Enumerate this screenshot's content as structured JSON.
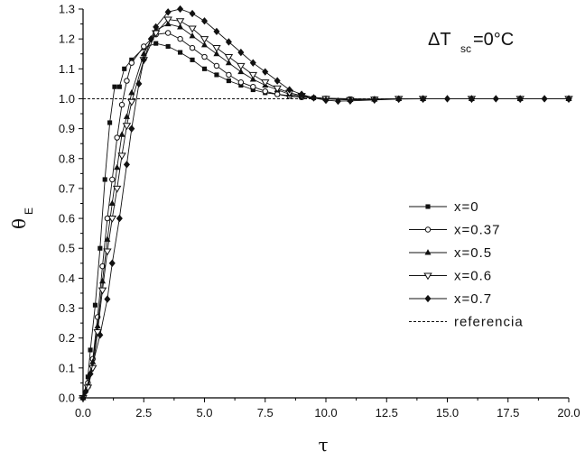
{
  "chart_data": {
    "type": "line",
    "xlabel": "τ",
    "ylabel": "θ",
    "ylabel_sub": "E",
    "xlim": [
      0,
      20
    ],
    "ylim": [
      0,
      1.3
    ],
    "x_ticks": [
      "0.0",
      "2.5",
      "5.0",
      "7.5",
      "10.0",
      "12.5",
      "15.0",
      "17.5",
      "20.0"
    ],
    "y_ticks": [
      "0.0",
      "0.1",
      "0.2",
      "0.3",
      "0.4",
      "0.5",
      "0.6",
      "0.7",
      "0.8",
      "0.9",
      "1.0",
      "1.1",
      "1.2",
      "1.3"
    ],
    "annotation": {
      "delta": "ΔT",
      "sub": "sc",
      "rest": "=0°C"
    },
    "legend_position": "right",
    "grid": false,
    "series": [
      {
        "name": "x=0",
        "marker": "square",
        "points": [
          [
            0,
            0
          ],
          [
            0.2,
            0.07
          ],
          [
            0.3,
            0.16
          ],
          [
            0.5,
            0.31
          ],
          [
            0.7,
            0.5
          ],
          [
            0.9,
            0.73
          ],
          [
            1.1,
            0.92
          ],
          [
            1.3,
            1.04
          ],
          [
            1.5,
            1.04
          ],
          [
            1.7,
            1.1
          ],
          [
            2.0,
            1.13
          ],
          [
            2.5,
            1.17
          ],
          [
            3.0,
            1.185
          ],
          [
            3.5,
            1.175
          ],
          [
            4.0,
            1.155
          ],
          [
            4.5,
            1.13
          ],
          [
            5.0,
            1.1
          ],
          [
            5.5,
            1.08
          ],
          [
            6.0,
            1.06
          ],
          [
            6.5,
            1.045
          ],
          [
            7.0,
            1.03
          ],
          [
            7.5,
            1.02
          ],
          [
            8.0,
            1.015
          ],
          [
            8.5,
            1.008
          ],
          [
            9.0,
            1.005
          ],
          [
            9.5,
            1.003
          ],
          [
            10,
            1.002
          ],
          [
            11,
            1.0
          ],
          [
            12,
            0.999
          ],
          [
            13,
            1.0
          ],
          [
            14,
            1.0
          ],
          [
            16,
            1.0
          ],
          [
            18,
            1.0
          ],
          [
            20,
            1.0
          ]
        ]
      },
      {
        "name": "x=0.37",
        "marker": "circle-open",
        "points": [
          [
            0,
            0
          ],
          [
            0.2,
            0.05
          ],
          [
            0.4,
            0.13
          ],
          [
            0.6,
            0.27
          ],
          [
            0.8,
            0.44
          ],
          [
            1.0,
            0.6
          ],
          [
            1.2,
            0.73
          ],
          [
            1.4,
            0.87
          ],
          [
            1.6,
            0.98
          ],
          [
            1.8,
            1.06
          ],
          [
            2.0,
            1.12
          ],
          [
            2.5,
            1.175
          ],
          [
            3.0,
            1.215
          ],
          [
            3.5,
            1.22
          ],
          [
            4.0,
            1.2
          ],
          [
            4.5,
            1.17
          ],
          [
            5.0,
            1.14
          ],
          [
            5.5,
            1.11
          ],
          [
            6.0,
            1.08
          ],
          [
            6.5,
            1.055
          ],
          [
            7.0,
            1.04
          ],
          [
            7.5,
            1.025
          ],
          [
            8.0,
            1.015
          ],
          [
            8.5,
            1.01
          ],
          [
            9.0,
            1.005
          ],
          [
            10,
            1.0
          ],
          [
            11,
            0.998
          ],
          [
            12,
            0.999
          ],
          [
            13,
            1.0
          ],
          [
            14,
            1.0
          ],
          [
            16,
            1.0
          ],
          [
            18,
            1.0
          ],
          [
            20,
            1.0
          ]
        ]
      },
      {
        "name": "x=0.5",
        "marker": "triangle-filled",
        "points": [
          [
            0,
            0
          ],
          [
            0.2,
            0.04
          ],
          [
            0.4,
            0.12
          ],
          [
            0.6,
            0.24
          ],
          [
            0.8,
            0.39
          ],
          [
            1.0,
            0.53
          ],
          [
            1.2,
            0.65
          ],
          [
            1.4,
            0.77
          ],
          [
            1.6,
            0.88
          ],
          [
            1.8,
            0.94
          ],
          [
            2.0,
            1.02
          ],
          [
            2.5,
            1.15
          ],
          [
            3.0,
            1.23
          ],
          [
            3.5,
            1.25
          ],
          [
            4.0,
            1.24
          ],
          [
            4.5,
            1.21
          ],
          [
            5.0,
            1.18
          ],
          [
            5.5,
            1.15
          ],
          [
            6.0,
            1.12
          ],
          [
            6.5,
            1.09
          ],
          [
            7.0,
            1.065
          ],
          [
            7.5,
            1.045
          ],
          [
            8.0,
            1.03
          ],
          [
            8.5,
            1.015
          ],
          [
            9.0,
            1.008
          ],
          [
            10,
            1.0
          ],
          [
            11,
            0.997
          ],
          [
            12,
            0.998
          ],
          [
            13,
            1.0
          ],
          [
            14,
            1.0
          ],
          [
            16,
            1.0
          ],
          [
            18,
            1.0
          ],
          [
            20,
            1.0
          ]
        ]
      },
      {
        "name": "x=0.6",
        "marker": "triangle-down-open",
        "points": [
          [
            0,
            0
          ],
          [
            0.2,
            0.035
          ],
          [
            0.4,
            0.1
          ],
          [
            0.6,
            0.22
          ],
          [
            0.8,
            0.36
          ],
          [
            1.0,
            0.49
          ],
          [
            1.2,
            0.6
          ],
          [
            1.4,
            0.7
          ],
          [
            1.6,
            0.81
          ],
          [
            1.8,
            0.91
          ],
          [
            2.0,
            0.99
          ],
          [
            2.5,
            1.13
          ],
          [
            3.0,
            1.22
          ],
          [
            3.5,
            1.265
          ],
          [
            4.0,
            1.26
          ],
          [
            4.5,
            1.235
          ],
          [
            5.0,
            1.2
          ],
          [
            5.5,
            1.17
          ],
          [
            6.0,
            1.14
          ],
          [
            6.5,
            1.11
          ],
          [
            7.0,
            1.08
          ],
          [
            7.5,
            1.055
          ],
          [
            8.0,
            1.035
          ],
          [
            8.5,
            1.02
          ],
          [
            9.0,
            1.01
          ],
          [
            10,
            1.0
          ],
          [
            11,
            0.996
          ],
          [
            12,
            0.998
          ],
          [
            13,
            1.0
          ],
          [
            14,
            1.0
          ],
          [
            16,
            1.0
          ],
          [
            18,
            1.0
          ],
          [
            20,
            1.0
          ]
        ]
      },
      {
        "name": "x=0.7",
        "marker": "diamond-filled",
        "points": [
          [
            0,
            0
          ],
          [
            0.1,
            0.02
          ],
          [
            0.3,
            0.08
          ],
          [
            0.7,
            0.21
          ],
          [
            1.0,
            0.33
          ],
          [
            1.2,
            0.45
          ],
          [
            1.5,
            0.6
          ],
          [
            1.8,
            0.78
          ],
          [
            2.0,
            0.9
          ],
          [
            2.3,
            1.05
          ],
          [
            2.5,
            1.13
          ],
          [
            2.8,
            1.2
          ],
          [
            3.0,
            1.24
          ],
          [
            3.5,
            1.29
          ],
          [
            4.0,
            1.3
          ],
          [
            4.5,
            1.285
          ],
          [
            5.0,
            1.26
          ],
          [
            5.5,
            1.225
          ],
          [
            6.0,
            1.19
          ],
          [
            6.5,
            1.155
          ],
          [
            7.0,
            1.12
          ],
          [
            7.5,
            1.09
          ],
          [
            8.0,
            1.06
          ],
          [
            8.5,
            1.03
          ],
          [
            9.0,
            1.015
          ],
          [
            9.5,
            1.003
          ],
          [
            10,
            0.995
          ],
          [
            10.5,
            0.992
          ],
          [
            11,
            0.993
          ],
          [
            12,
            0.996
          ],
          [
            13,
            0.999
          ],
          [
            14,
            1.0
          ],
          [
            15,
            1.0
          ],
          [
            16,
            1.0
          ],
          [
            17,
            1.0
          ],
          [
            18,
            1.0
          ],
          [
            19,
            1.0
          ],
          [
            20,
            1.0
          ]
        ]
      },
      {
        "name": "referencia",
        "marker": "none",
        "dashed": true,
        "points": [
          [
            0,
            1.0
          ],
          [
            20,
            1.0
          ]
        ]
      }
    ]
  }
}
